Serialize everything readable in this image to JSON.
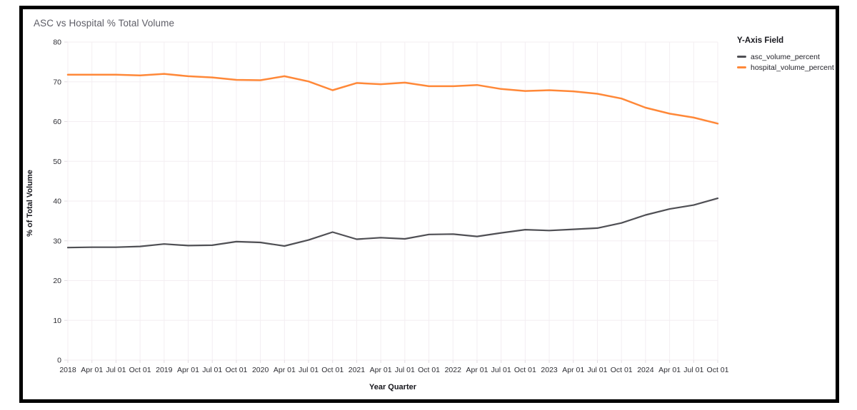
{
  "page": {
    "background_color": "#ffffff",
    "frame_border_color": "#000000"
  },
  "chart_data": {
    "type": "line",
    "title": "ASC vs Hospital % Total Volume",
    "xlabel": "Year Quarter",
    "ylabel": "% of Total Volume",
    "ylim": [
      0,
      80
    ],
    "y_ticks": [
      0,
      10,
      20,
      30,
      40,
      50,
      60,
      70,
      80
    ],
    "x_tick_labels": [
      "2018",
      "Apr 01",
      "Jul 01",
      "Oct 01",
      "2019",
      "Apr 01",
      "Jul 01",
      "Oct 01",
      "2020",
      "Apr 01",
      "Jul 01",
      "Oct 01",
      "2021",
      "Apr 01",
      "Jul 01",
      "Oct 01",
      "2022",
      "Apr 01",
      "Jul 01",
      "Oct 01",
      "2023",
      "Apr 01",
      "Jul 01",
      "Oct 01",
      "2024",
      "Apr 01",
      "Jul 01",
      "Oct 01"
    ],
    "grid": true,
    "legend": {
      "title": "Y-Axis Field",
      "position": "right"
    },
    "series": [
      {
        "name": "asc_volume_percent",
        "color": "#4f4f54",
        "values": [
          28.3,
          28.4,
          28.4,
          28.6,
          29.2,
          28.8,
          28.9,
          29.8,
          29.6,
          28.7,
          30.2,
          32.2,
          30.4,
          30.8,
          30.5,
          31.6,
          31.7,
          31.1,
          32.0,
          32.8,
          32.6,
          32.9,
          33.2,
          34.5,
          36.5,
          38.0,
          39.0,
          40.7
        ]
      },
      {
        "name": "hospital_volume_percent",
        "color": "#ff8838",
        "values": [
          71.8,
          71.8,
          71.8,
          71.6,
          72.0,
          71.4,
          71.1,
          70.5,
          70.4,
          71.4,
          70.1,
          67.9,
          69.7,
          69.4,
          69.8,
          68.9,
          68.9,
          69.2,
          68.2,
          67.7,
          67.9,
          67.6,
          67.0,
          65.8,
          63.5,
          62.0,
          61.0,
          59.5
        ]
      }
    ],
    "style": {
      "grid_color": "#f3eef2",
      "tick_mark_color": "#e3dde3",
      "tick_label_color": "#2e2e34",
      "axis_title_color": "#17171d",
      "title_color": "#5d5d66"
    }
  }
}
